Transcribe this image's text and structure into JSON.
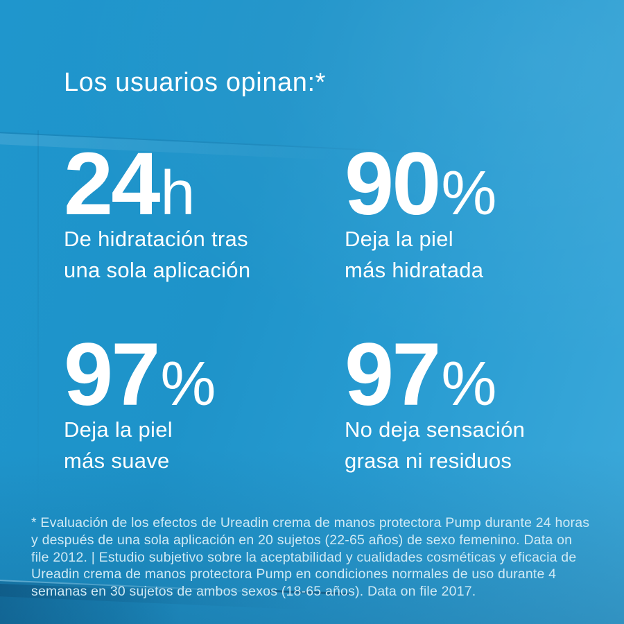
{
  "page": {
    "title": "Los usuarios opinan:*",
    "colors": {
      "background_base": "#1e93c9",
      "background_light": "#3daadb",
      "background_dark_corner": "#1172a7",
      "headline_text": "#ffffff",
      "footnote_text": "#cfe9f4"
    }
  },
  "stats": [
    {
      "value": "24",
      "unit": "h",
      "caption_line1": "De hidratación tras",
      "caption_line2": "una sola aplicación"
    },
    {
      "value": "90",
      "unit": "%",
      "caption_line1": "Deja la piel",
      "caption_line2": "más hidratada"
    },
    {
      "value": "97",
      "unit": "%",
      "caption_line1": "Deja la piel",
      "caption_line2": "más suave"
    },
    {
      "value": "97",
      "unit": "%",
      "caption_line1": "No deja sensación",
      "caption_line2": "grasa ni residuos"
    }
  ],
  "footnote": {
    "lines": [
      "* Evaluación de los efectos de Ureadin crema de manos protectora Pump durante 24 horas",
      "y después de una sola aplicación en 20 sujetos (22-65 años) de sexo femenino. Data on",
      "file 2012. | Estudio subjetivo sobre la aceptabilidad y cualidades cosméticas y eficacia de",
      "Ureadin crema de manos protectora Pump en condiciones normales de uso durante 4",
      "semanas en 30 sujetos de ambos sexos (18-65 años). Data on file 2017."
    ]
  }
}
